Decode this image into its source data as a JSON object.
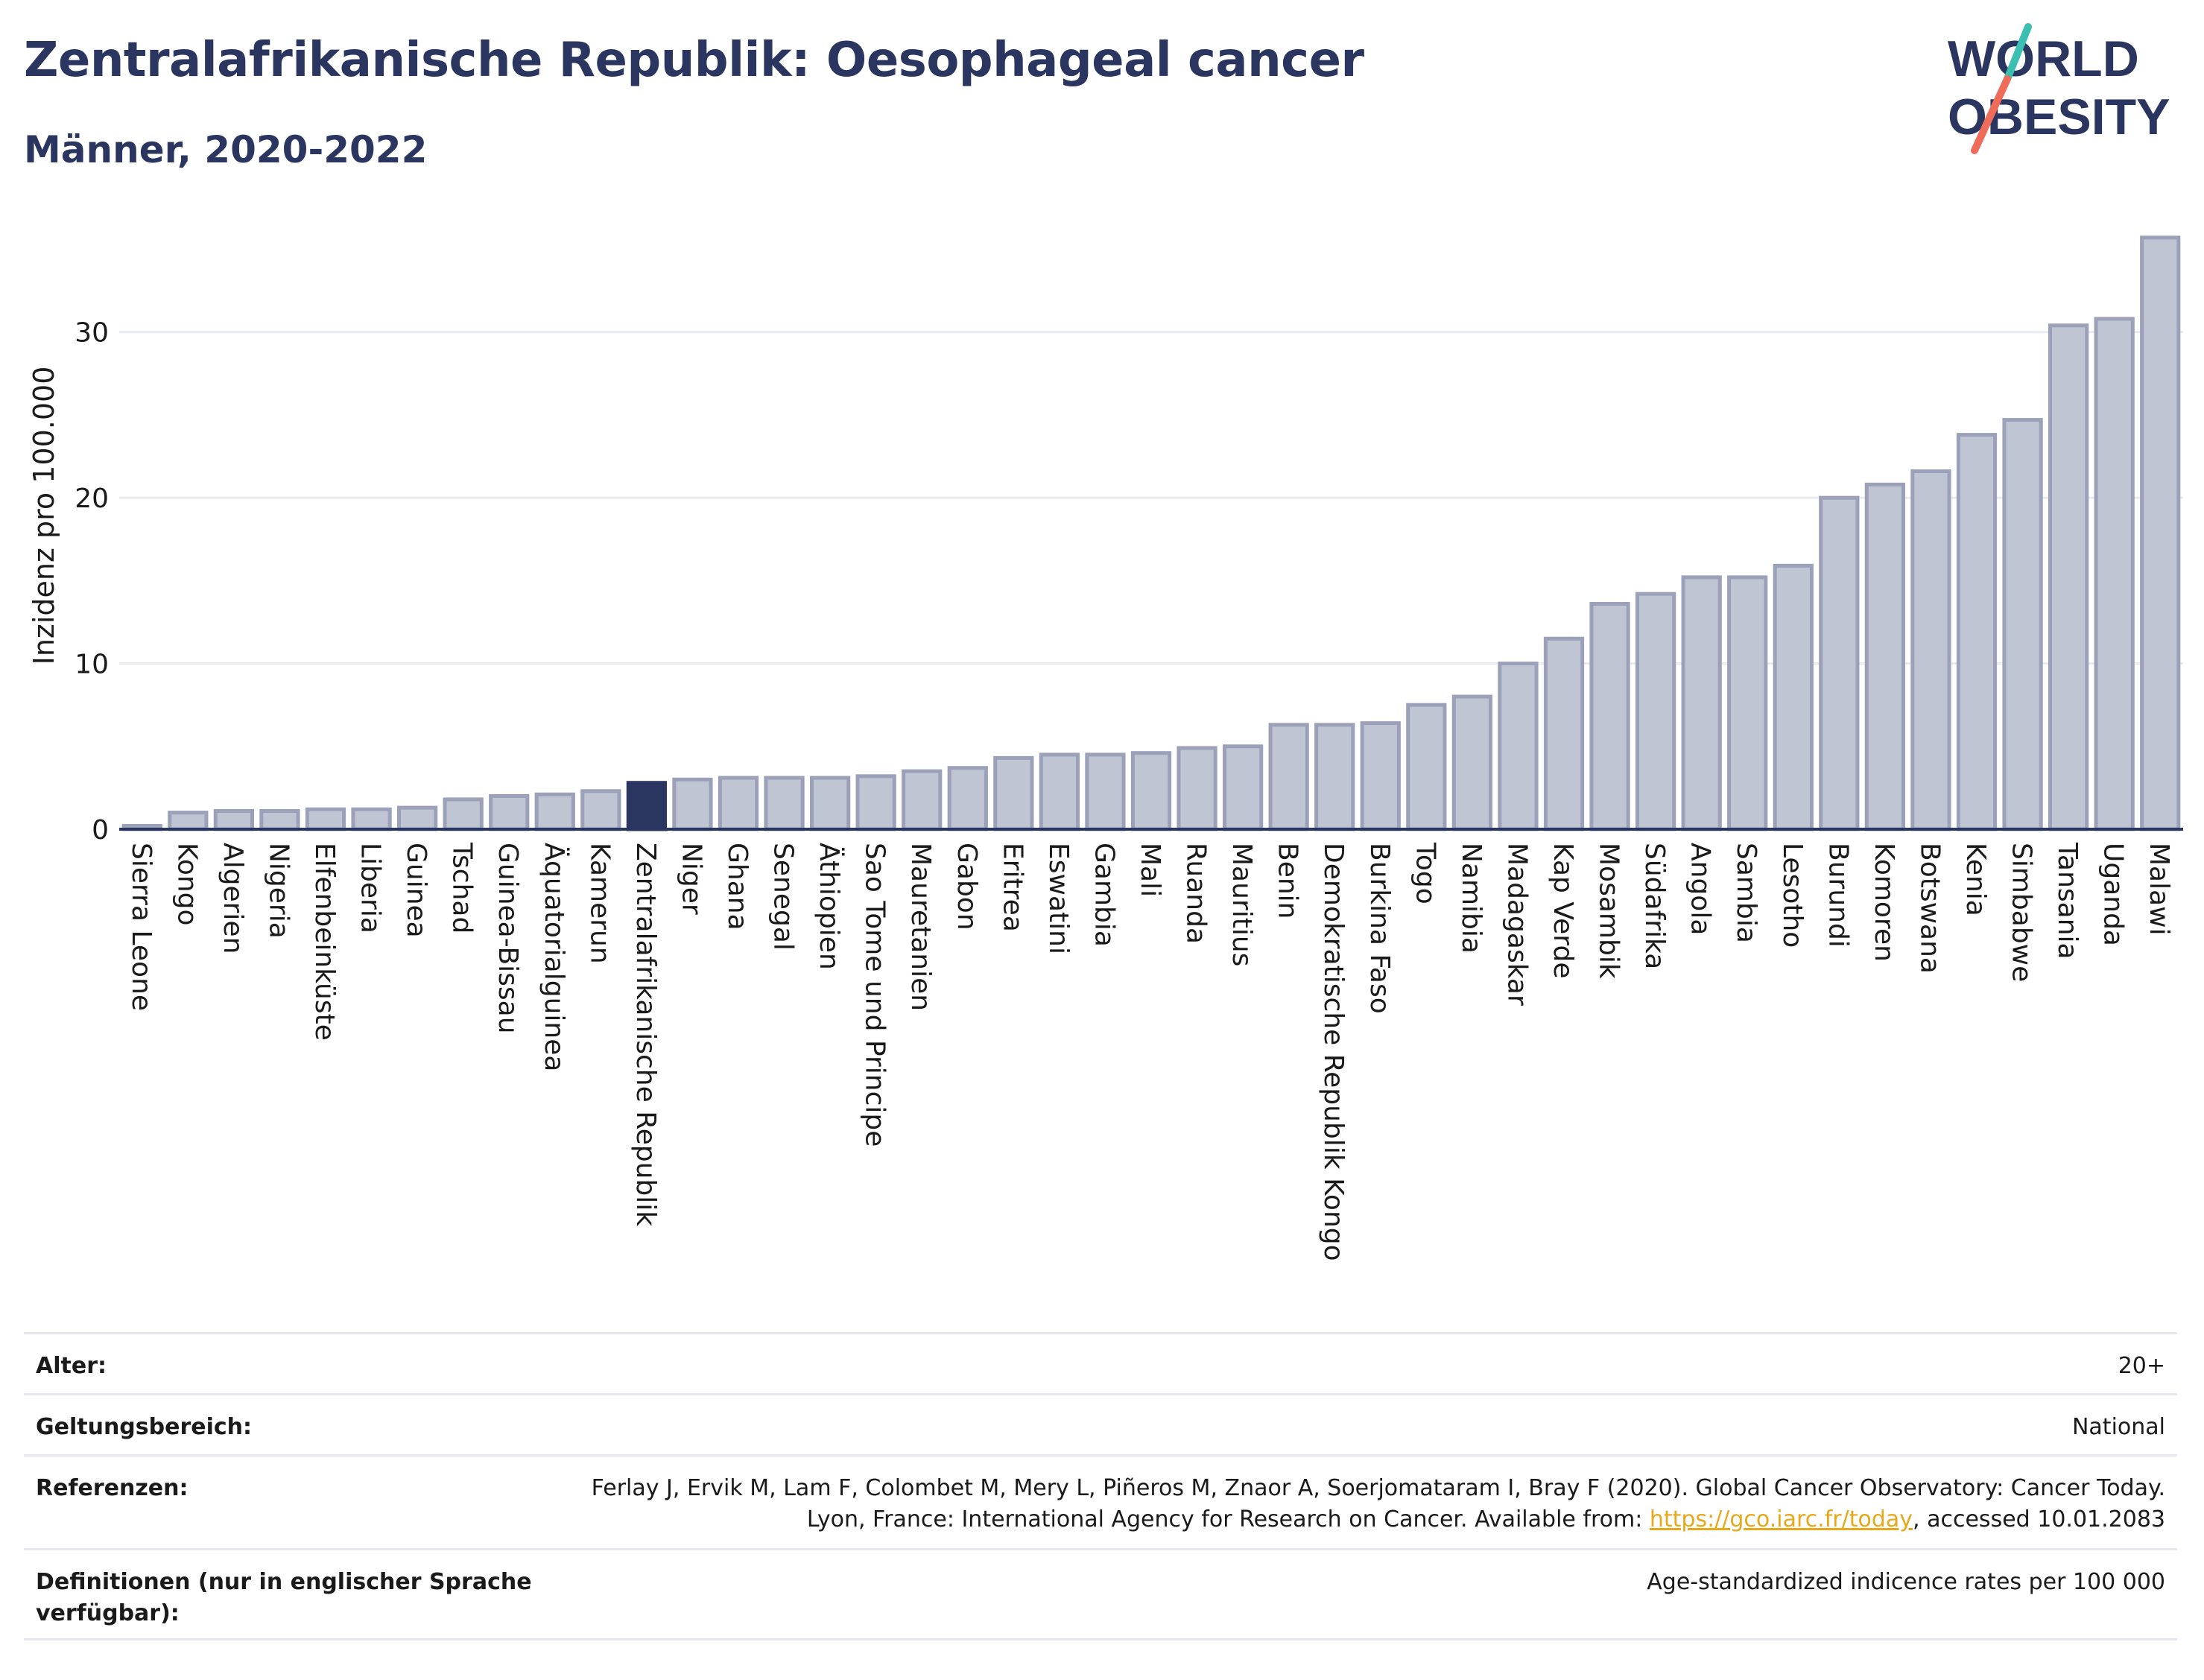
{
  "header": {
    "title": "Zentralafrikanische Republik: Oesophageal cancer",
    "subtitle": "Männer, 2020-2022"
  },
  "logo": {
    "line1": "WORLD",
    "line2": "OBESITY",
    "colors": {
      "text": "#2a3560",
      "slash_top": "#3bbfb0",
      "slash_bottom": "#ef6b5a"
    }
  },
  "chart_data": {
    "type": "bar",
    "ylabel": "Inzidenz pro 100.000",
    "ylim": [
      0,
      37
    ],
    "yticks": [
      0,
      10,
      20,
      30
    ],
    "grid": true,
    "highlight": "Zentralafrikanische Republik",
    "colors": {
      "bar": "#c0c5d4",
      "bar_stroke": "#9aa1b9",
      "highlight": "#2a3560",
      "grid": "#e8eaf0",
      "axis": "#2a3560"
    },
    "categories": [
      "Sierra Leone",
      "Kongo",
      "Algerien",
      "Nigeria",
      "Elfenbeinküste",
      "Liberia",
      "Guinea",
      "Tschad",
      "Guinea-Bissau",
      "Äquatorialguinea",
      "Kamerun",
      "Zentralafrikanische Republik",
      "Niger",
      "Ghana",
      "Senegal",
      "Äthiopien",
      "Sao Tome und Principe",
      "Mauretanien",
      "Gabon",
      "Eritrea",
      "Eswatini",
      "Gambia",
      "Mali",
      "Ruanda",
      "Mauritius",
      "Benin",
      "Demokratische Republik Kongo",
      "Burkina Faso",
      "Togo",
      "Namibia",
      "Madagaskar",
      "Kap Verde",
      "Mosambik",
      "Südafrika",
      "Angola",
      "Sambia",
      "Lesotho",
      "Burundi",
      "Komoren",
      "Botswana",
      "Kenia",
      "Simbabwe",
      "Tansania",
      "Uganda",
      "Malawi"
    ],
    "values": [
      0.2,
      1.0,
      1.1,
      1.1,
      1.2,
      1.2,
      1.3,
      1.8,
      2.0,
      2.1,
      2.3,
      2.8,
      3.0,
      3.1,
      3.1,
      3.1,
      3.2,
      3.5,
      3.7,
      4.3,
      4.5,
      4.5,
      4.6,
      4.9,
      5.0,
      6.3,
      6.3,
      6.4,
      7.5,
      8.0,
      10.0,
      11.5,
      13.6,
      14.2,
      15.2,
      15.2,
      15.9,
      20.0,
      20.8,
      21.6,
      23.8,
      24.7,
      30.4,
      30.8,
      35.7
    ]
  },
  "info": {
    "rows": [
      {
        "label": "Alter:",
        "value": "20+"
      },
      {
        "label": "Geltungsbereich:",
        "value": "National"
      },
      {
        "label": "Referenzen:",
        "value_pre": "Ferlay J, Ervik M, Lam F, Colombet M, Mery L, Piñeros M, Znaor A, Soerjomataram I, Bray F (2020). Global Cancer Observatory: Cancer Today. Lyon, France: International Agency for Research on Cancer. Available from: ",
        "link": "https://gco.iarc.fr/today",
        "value_post": ", accessed 10.01.2083"
      },
      {
        "label": "Definitionen (nur in englischer Sprache verfügbar):",
        "value": "Age-standardized indicence rates per 100 000"
      }
    ]
  }
}
